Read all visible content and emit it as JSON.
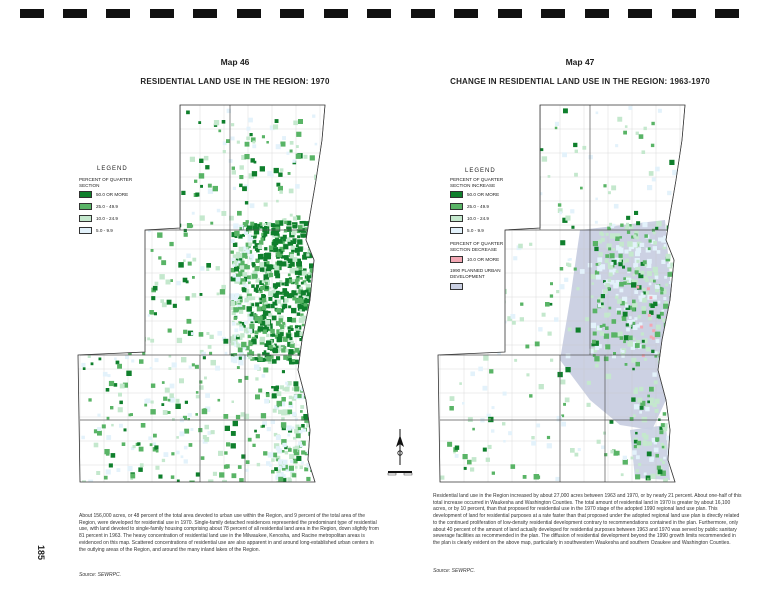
{
  "page": {
    "number": "185"
  },
  "left_map": {
    "number": "Map 46",
    "title": "RESIDENTIAL LAND USE IN THE REGION: 1970",
    "legend": {
      "title": "LEGEND",
      "subtitle_lines": [
        "PERCENT OF QUARTER",
        "SECTION"
      ],
      "items": [
        {
          "label": "50.0 OR MORE",
          "color": "#0f7f2c"
        },
        {
          "label": "25.0 - 49.9",
          "color": "#59b466"
        },
        {
          "label": "10.0 - 24.9",
          "color": "#c4e8cd"
        },
        {
          "label": "5.0 - 9.9",
          "color": "#e3f2fb"
        }
      ]
    },
    "caption": "About 156,000 acres, or 48 percent of the total area devoted to urban use within the Region, and 9 percent of the total area of the Region, were developed for residential use in 1970. Single-family detached residences represented the predominant type of residential use, with land devoted to single-family housing comprising about 78 percent of all residential land area in the Region, down slightly from 81 percent in 1963. The heavy concentration of residential land use in the Milwaukee, Kenosha, and Racine metropolitan areas is evidenced on this map. Scattered concentrations of residential use are also apparent in and around long-established urban centers in the outlying areas of the Region, and around the many inland lakes of the Region.",
    "source": "Source: SEWRPC."
  },
  "right_map": {
    "number": "Map 47",
    "title": "CHANGE IN RESIDENTIAL LAND USE IN THE REGION: 1963-1970",
    "legend": {
      "title": "LEGEND",
      "increase_subtitle_lines": [
        "PERCENT OF QUARTER",
        "SECTION INCREASE"
      ],
      "increase_items": [
        {
          "label": "50.0 OR MORE",
          "color": "#0f7f2c"
        },
        {
          "label": "25.0 - 49.9",
          "color": "#59b466"
        },
        {
          "label": "10.0 - 24.9",
          "color": "#c4e8cd"
        },
        {
          "label": "5.0 - 9.9",
          "color": "#e3f2fb"
        }
      ],
      "decrease_subtitle_lines": [
        "PERCENT OF QUARTER",
        "SECTION DECREASE"
      ],
      "decrease_items": [
        {
          "label": "10.0 OR MORE",
          "color": "#f2a7b3"
        }
      ],
      "planned_lines": [
        "1990 PLANNED URBAN",
        "DEVELOPMENT"
      ],
      "planned_color": "#c9cfe2"
    },
    "caption": "Residential land use in the Region increased by about 27,000 acres between 1963 and 1970, or by nearly 21 percent. About one-half of this total increase occurred in Waukesha and Washington Counties. The total amount of residential land in 1970 is greater by about 16,100 acres, or by 10 percent, than that proposed for residential use in the 1970 stage of the adopted 1990 regional land use plan. This development of land for residential purposes at a rate faster than that proposed under the adopted regional land use plan is directly related to the continued proliferation of low-density residential development contrary to recommendations contained in the plan. Furthermore, only about 40 percent of the amount of land actually developed for residential purposes between 1963 and 1970 was served by public sanitary sewerage facilities as recommended in the plan. The diffusion of residential development beyond the 1990 growth limits recommended in the plan is clearly evident on the above map, particularly in southwestern Waukesha and southern Ozaukee and Washington Counties.",
    "source": "Source: SEWRPC."
  },
  "colors": {
    "lake": "#d5e6f2",
    "county_line": "#555555",
    "grid_line": "#c8c8c8"
  }
}
